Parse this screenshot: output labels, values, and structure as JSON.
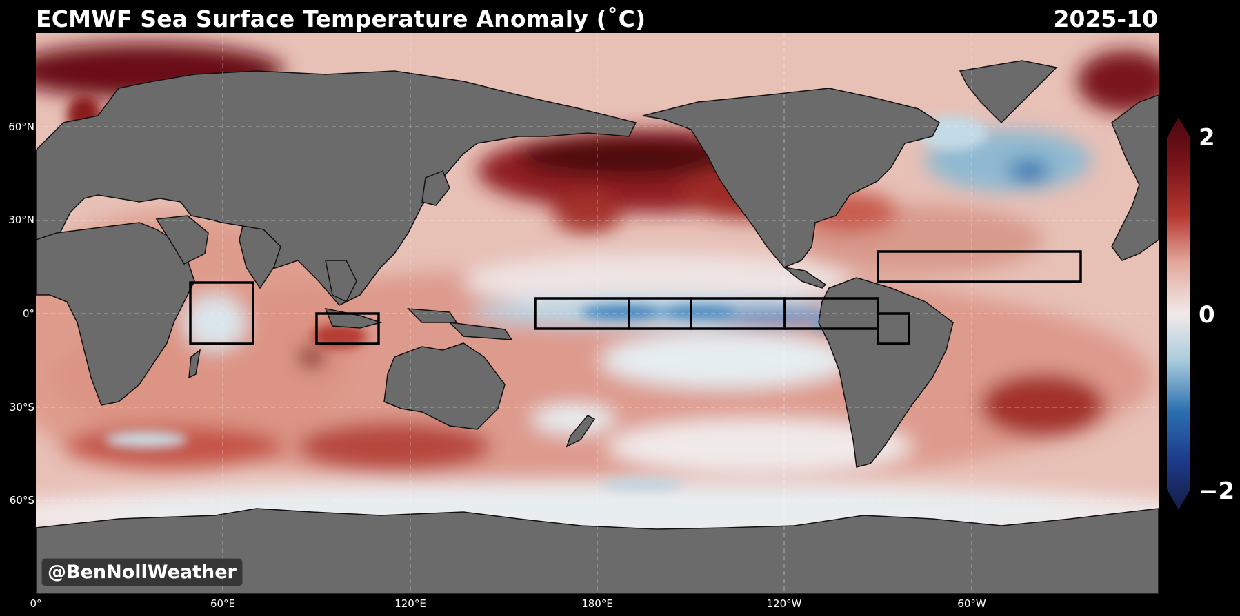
{
  "header": {
    "title": "ECMWF Sea Surface Temperature Anomaly (˚C)",
    "date": "2025-10"
  },
  "axes": {
    "lat_ticks": [
      "60°N",
      "30°N",
      "0°",
      "30°S",
      "60°S"
    ],
    "lon_ticks": [
      "0°",
      "60°E",
      "120°E",
      "180°E",
      "120°W",
      "60°W"
    ]
  },
  "colorbar": {
    "max_label": "2",
    "mid_label": "0",
    "min_label": "−2",
    "colors": {
      "strong_warm": "#5a0a12",
      "warm": "#b5372f",
      "mild_warm": "#e3a79a",
      "neutral": "#f1eaea",
      "mild_cool": "#a9cbdc",
      "cool": "#2a6fb0",
      "strong_cool": "#15214f"
    }
  },
  "credit": "@BenNollWeather",
  "regions": [
    "nino-1-2",
    "nino-3",
    "nino-3-4",
    "nino-4",
    "atlantic-main-development",
    "indian-ocean-west",
    "indian-ocean-east"
  ],
  "colors": {
    "land": "#6b6b6b",
    "background": "#000000",
    "grid": "#ffffff"
  }
}
